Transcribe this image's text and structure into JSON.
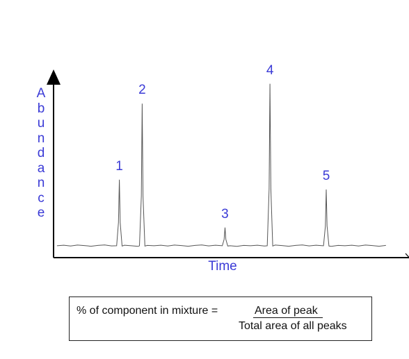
{
  "chart_data": {
    "type": "line",
    "title": "",
    "xlabel": "Time",
    "ylabel": "Abundance",
    "x_range": [
      0,
      100
    ],
    "y_range": [
      0,
      100
    ],
    "grid": false,
    "axis_color": "#000000",
    "line_color": "#555555",
    "label_color": "#3a3ad6",
    "baseline": 3,
    "peaks": [
      {
        "label": "1",
        "x": 19.3,
        "height": 40
      },
      {
        "label": "2",
        "x": 26.0,
        "height": 86
      },
      {
        "label": "3",
        "x": 50.3,
        "height": 11
      },
      {
        "label": "4",
        "x": 63.5,
        "height": 98
      },
      {
        "label": "5",
        "x": 80.0,
        "height": 34
      }
    ]
  },
  "formula": {
    "left": "% of component in mixture =",
    "numerator": "Area of peak",
    "denominator": "Total area of all peaks"
  }
}
